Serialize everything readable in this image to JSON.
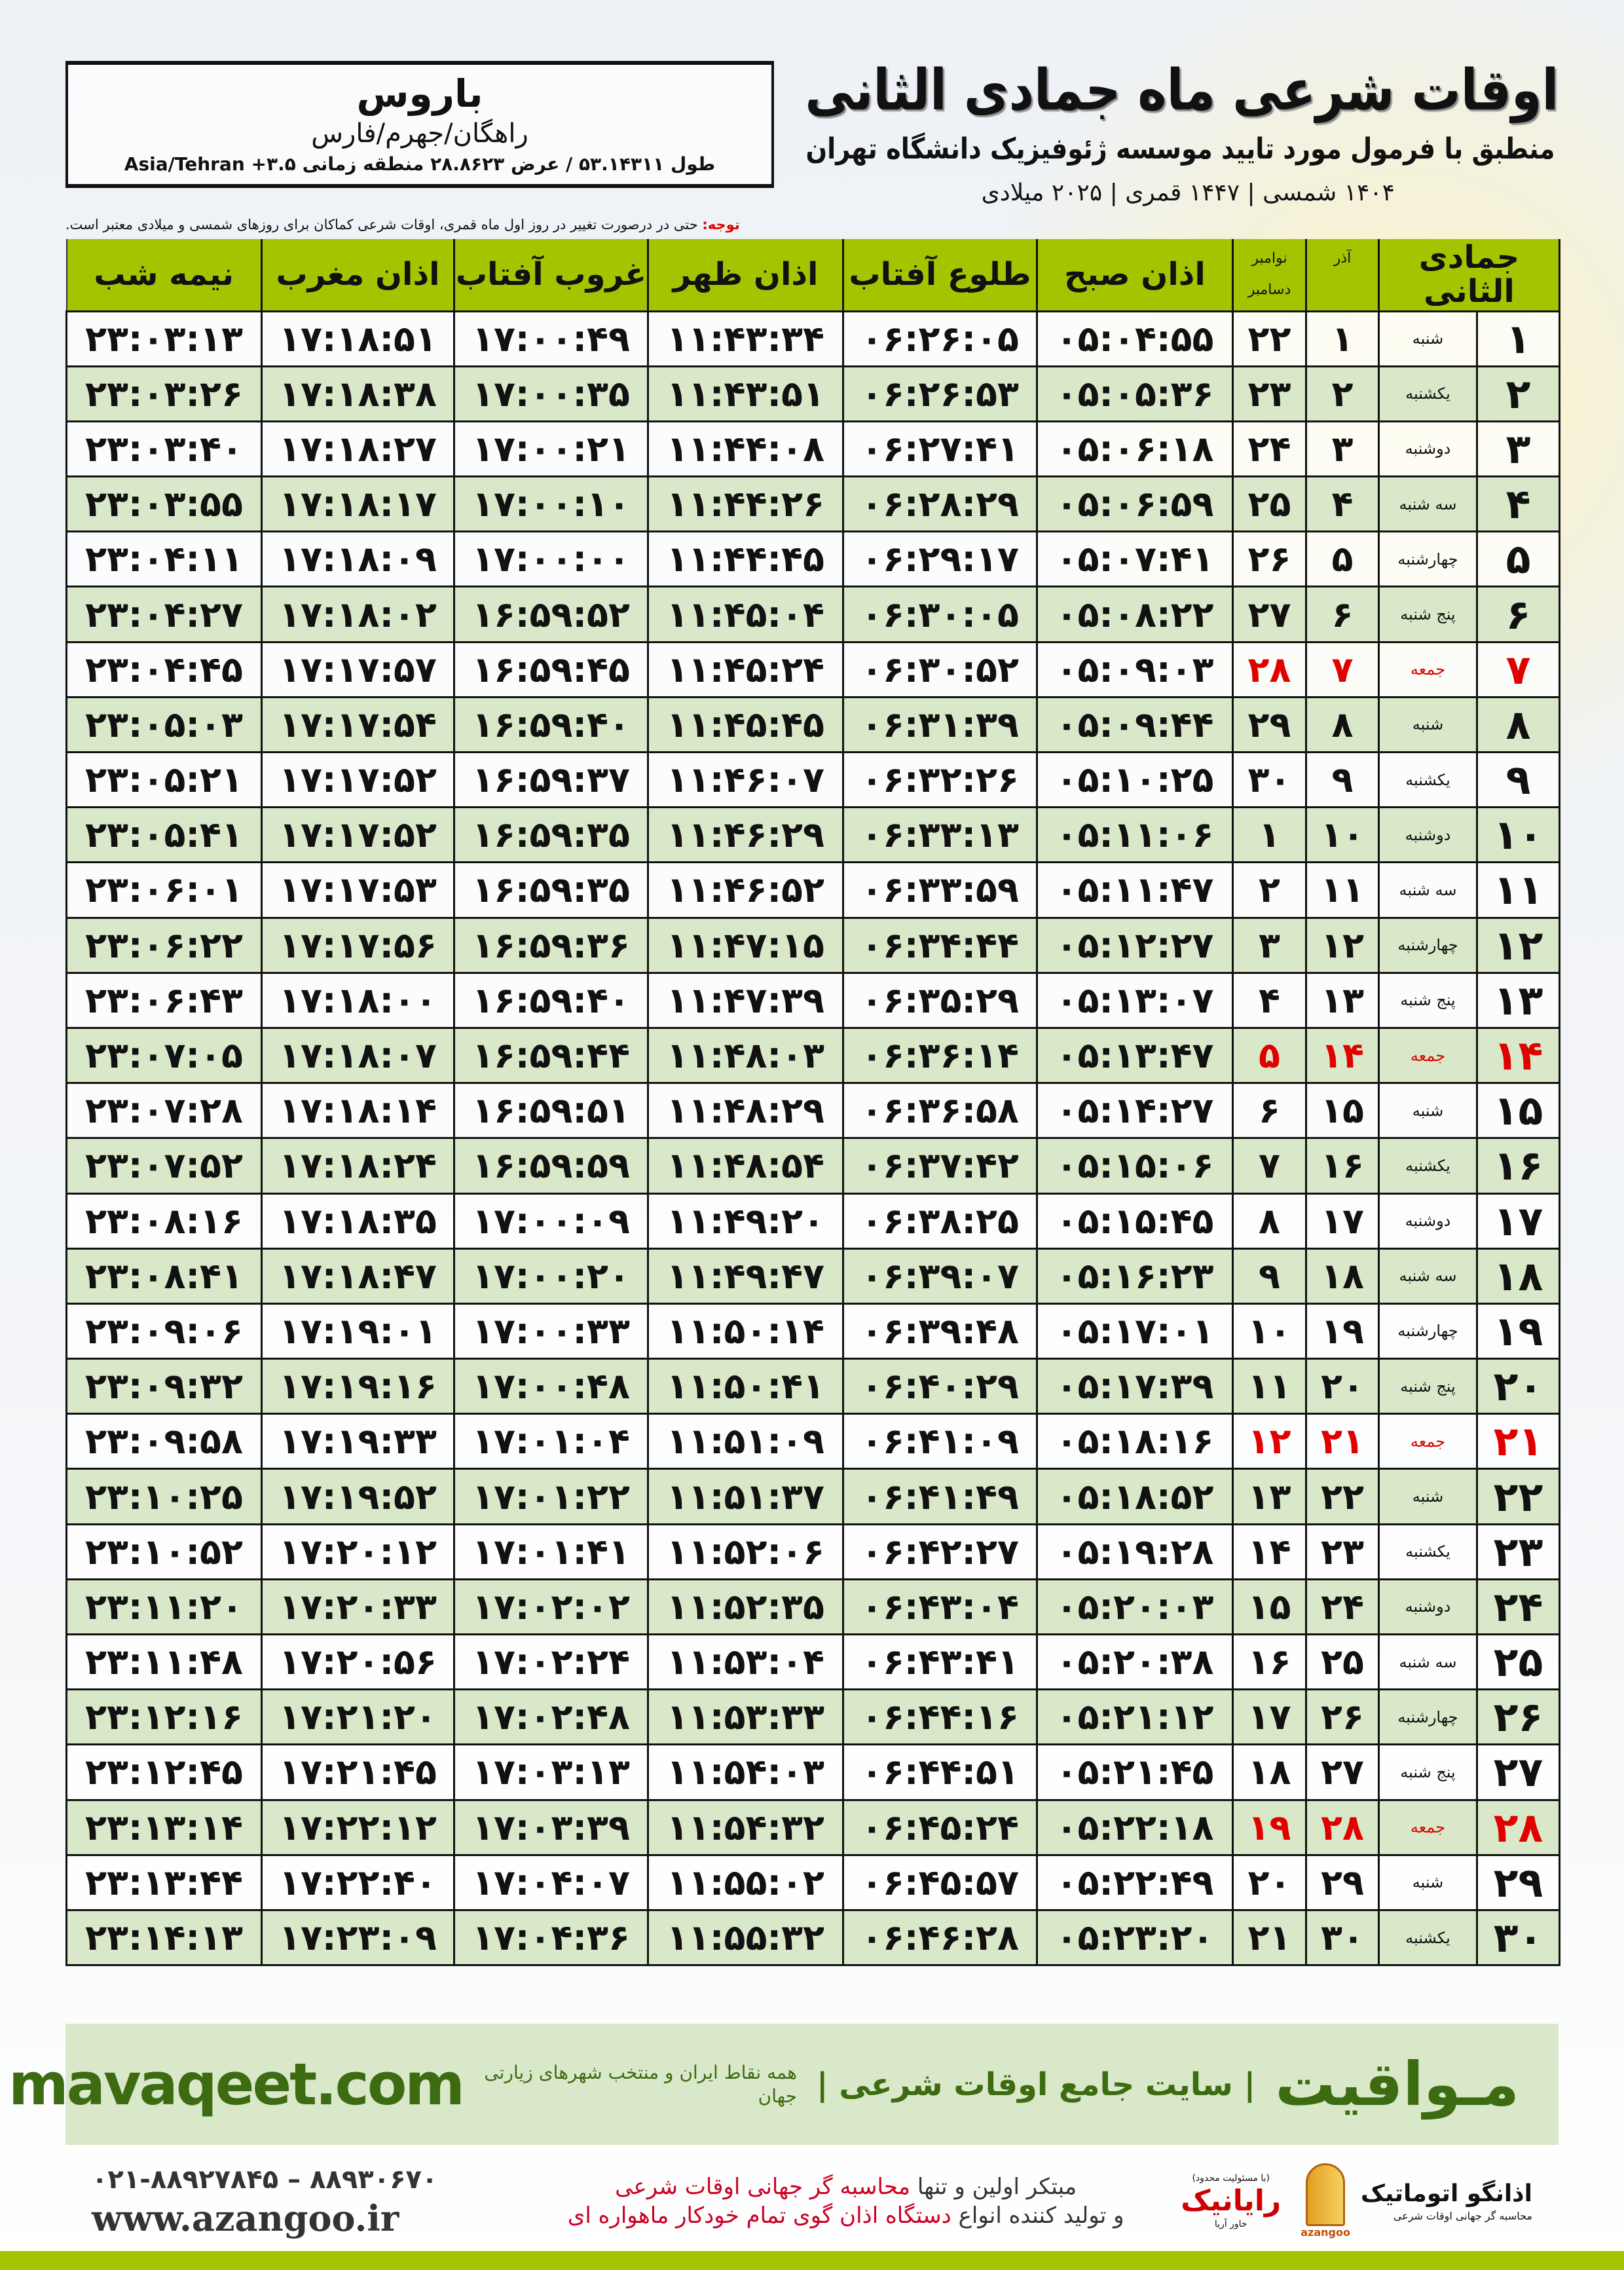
{
  "location": {
    "city": "باروس",
    "region": "راهگان/جهرم/فارس",
    "coords": "طول ۵۳.۱۴۳۱۱ / عرض ۲۸.۸۶۲۳ منطقه زمانی ۳.۵+ Asia/Tehran"
  },
  "header": {
    "title": "اوقات شرعی ماه جمادی الثانی",
    "subtitle": "منطبق با فرمول مورد تایید موسسه ژئوفیزیک دانشگاه تهران",
    "dates": "۱۴۰۴ شمسی | ۱۴۴۷ قمری | ۲۰۲۵ میلادی"
  },
  "note": {
    "label": "توجه:",
    "text": " حتی در درصورت تغییر در روز اول ماه قمری، اوقات شرعی کماکان برای روزهای شمسی و میلادی معتبر است."
  },
  "table": {
    "columns": {
      "day": "جمادی الثانی",
      "azar": "آذر",
      "nov": "نوامبر",
      "dec": "دسامبر",
      "fajr": "اذان صبح",
      "sunrise": "طلوع آفتاب",
      "dhuhr": "اذان ظهر",
      "sunset": "غروب آفتاب",
      "maghrib": "اذان مغرب",
      "midnight": "نیمه شب"
    },
    "holiday_color": "#e00000",
    "header_color": "#a5c400",
    "alt_row_color": "#d9e8c8",
    "rows": [
      [
        "۱",
        "شنبه",
        "۱",
        "۲۲",
        "۰۵:۰۴:۵۵",
        "۰۶:۲۶:۰۵",
        "۱۱:۴۳:۳۴",
        "۱۷:۰۰:۴۹",
        "۱۷:۱۸:۵۱",
        "۲۳:۰۳:۱۳"
      ],
      [
        "۲",
        "یکشنبه",
        "۲",
        "۲۳",
        "۰۵:۰۵:۳۶",
        "۰۶:۲۶:۵۳",
        "۱۱:۴۳:۵۱",
        "۱۷:۰۰:۳۵",
        "۱۷:۱۸:۳۸",
        "۲۳:۰۳:۲۶"
      ],
      [
        "۳",
        "دوشنبه",
        "۳",
        "۲۴",
        "۰۵:۰۶:۱۸",
        "۰۶:۲۷:۴۱",
        "۱۱:۴۴:۰۸",
        "۱۷:۰۰:۲۱",
        "۱۷:۱۸:۲۷",
        "۲۳:۰۳:۴۰"
      ],
      [
        "۴",
        "سه شنبه",
        "۴",
        "۲۵",
        "۰۵:۰۶:۵۹",
        "۰۶:۲۸:۲۹",
        "۱۱:۴۴:۲۶",
        "۱۷:۰۰:۱۰",
        "۱۷:۱۸:۱۷",
        "۲۳:۰۳:۵۵"
      ],
      [
        "۵",
        "چهارشنبه",
        "۵",
        "۲۶",
        "۰۵:۰۷:۴۱",
        "۰۶:۲۹:۱۷",
        "۱۱:۴۴:۴۵",
        "۱۷:۰۰:۰۰",
        "۱۷:۱۸:۰۹",
        "۲۳:۰۴:۱۱"
      ],
      [
        "۶",
        "پنج شنبه",
        "۶",
        "۲۷",
        "۰۵:۰۸:۲۲",
        "۰۶:۳۰:۰۵",
        "۱۱:۴۵:۰۴",
        "۱۶:۵۹:۵۲",
        "۱۷:۱۸:۰۲",
        "۲۳:۰۴:۲۷"
      ],
      [
        "۷",
        "جمعه",
        "۷",
        "۲۸",
        "۰۵:۰۹:۰۳",
        "۰۶:۳۰:۵۲",
        "۱۱:۴۵:۲۴",
        "۱۶:۵۹:۴۵",
        "۱۷:۱۷:۵۷",
        "۲۳:۰۴:۴۵"
      ],
      [
        "۸",
        "شنبه",
        "۸",
        "۲۹",
        "۰۵:۰۹:۴۴",
        "۰۶:۳۱:۳۹",
        "۱۱:۴۵:۴۵",
        "۱۶:۵۹:۴۰",
        "۱۷:۱۷:۵۴",
        "۲۳:۰۵:۰۳"
      ],
      [
        "۹",
        "یکشنبه",
        "۹",
        "۳۰",
        "۰۵:۱۰:۲۵",
        "۰۶:۳۲:۲۶",
        "۱۱:۴۶:۰۷",
        "۱۶:۵۹:۳۷",
        "۱۷:۱۷:۵۲",
        "۲۳:۰۵:۲۱"
      ],
      [
        "۱۰",
        "دوشنبه",
        "۱۰",
        "۱",
        "۰۵:۱۱:۰۶",
        "۰۶:۳۳:۱۳",
        "۱۱:۴۶:۲۹",
        "۱۶:۵۹:۳۵",
        "۱۷:۱۷:۵۲",
        "۲۳:۰۵:۴۱"
      ],
      [
        "۱۱",
        "سه شنبه",
        "۱۱",
        "۲",
        "۰۵:۱۱:۴۷",
        "۰۶:۳۳:۵۹",
        "۱۱:۴۶:۵۲",
        "۱۶:۵۹:۳۵",
        "۱۷:۱۷:۵۳",
        "۲۳:۰۶:۰۱"
      ],
      [
        "۱۲",
        "چهارشنبه",
        "۱۲",
        "۳",
        "۰۵:۱۲:۲۷",
        "۰۶:۳۴:۴۴",
        "۱۱:۴۷:۱۵",
        "۱۶:۵۹:۳۶",
        "۱۷:۱۷:۵۶",
        "۲۳:۰۶:۲۲"
      ],
      [
        "۱۳",
        "پنج شنبه",
        "۱۳",
        "۴",
        "۰۵:۱۳:۰۷",
        "۰۶:۳۵:۲۹",
        "۱۱:۴۷:۳۹",
        "۱۶:۵۹:۴۰",
        "۱۷:۱۸:۰۰",
        "۲۳:۰۶:۴۳"
      ],
      [
        "۱۴",
        "جمعه",
        "۱۴",
        "۵",
        "۰۵:۱۳:۴۷",
        "۰۶:۳۶:۱۴",
        "۱۱:۴۸:۰۳",
        "۱۶:۵۹:۴۴",
        "۱۷:۱۸:۰۷",
        "۲۳:۰۷:۰۵"
      ],
      [
        "۱۵",
        "شنبه",
        "۱۵",
        "۶",
        "۰۵:۱۴:۲۷",
        "۰۶:۳۶:۵۸",
        "۱۱:۴۸:۲۹",
        "۱۶:۵۹:۵۱",
        "۱۷:۱۸:۱۴",
        "۲۳:۰۷:۲۸"
      ],
      [
        "۱۶",
        "یکشنبه",
        "۱۶",
        "۷",
        "۰۵:۱۵:۰۶",
        "۰۶:۳۷:۴۲",
        "۱۱:۴۸:۵۴",
        "۱۶:۵۹:۵۹",
        "۱۷:۱۸:۲۴",
        "۲۳:۰۷:۵۲"
      ],
      [
        "۱۷",
        "دوشنبه",
        "۱۷",
        "۸",
        "۰۵:۱۵:۴۵",
        "۰۶:۳۸:۲۵",
        "۱۱:۴۹:۲۰",
        "۱۷:۰۰:۰۹",
        "۱۷:۱۸:۳۵",
        "۲۳:۰۸:۱۶"
      ],
      [
        "۱۸",
        "سه شنبه",
        "۱۸",
        "۹",
        "۰۵:۱۶:۲۳",
        "۰۶:۳۹:۰۷",
        "۱۱:۴۹:۴۷",
        "۱۷:۰۰:۲۰",
        "۱۷:۱۸:۴۷",
        "۲۳:۰۸:۴۱"
      ],
      [
        "۱۹",
        "چهارشنبه",
        "۱۹",
        "۱۰",
        "۰۵:۱۷:۰۱",
        "۰۶:۳۹:۴۸",
        "۱۱:۵۰:۱۴",
        "۱۷:۰۰:۳۳",
        "۱۷:۱۹:۰۱",
        "۲۳:۰۹:۰۶"
      ],
      [
        "۲۰",
        "پنج شنبه",
        "۲۰",
        "۱۱",
        "۰۵:۱۷:۳۹",
        "۰۶:۴۰:۲۹",
        "۱۱:۵۰:۴۱",
        "۱۷:۰۰:۴۸",
        "۱۷:۱۹:۱۶",
        "۲۳:۰۹:۳۲"
      ],
      [
        "۲۱",
        "جمعه",
        "۲۱",
        "۱۲",
        "۰۵:۱۸:۱۶",
        "۰۶:۴۱:۰۹",
        "۱۱:۵۱:۰۹",
        "۱۷:۰۱:۰۴",
        "۱۷:۱۹:۳۳",
        "۲۳:۰۹:۵۸"
      ],
      [
        "۲۲",
        "شنبه",
        "۲۲",
        "۱۳",
        "۰۵:۱۸:۵۲",
        "۰۶:۴۱:۴۹",
        "۱۱:۵۱:۳۷",
        "۱۷:۰۱:۲۲",
        "۱۷:۱۹:۵۲",
        "۲۳:۱۰:۲۵"
      ],
      [
        "۲۳",
        "یکشنبه",
        "۲۳",
        "۱۴",
        "۰۵:۱۹:۲۸",
        "۰۶:۴۲:۲۷",
        "۱۱:۵۲:۰۶",
        "۱۷:۰۱:۴۱",
        "۱۷:۲۰:۱۲",
        "۲۳:۱۰:۵۲"
      ],
      [
        "۲۴",
        "دوشنبه",
        "۲۴",
        "۱۵",
        "۰۵:۲۰:۰۳",
        "۰۶:۴۳:۰۴",
        "۱۱:۵۲:۳۵",
        "۱۷:۰۲:۰۲",
        "۱۷:۲۰:۳۳",
        "۲۳:۱۱:۲۰"
      ],
      [
        "۲۵",
        "سه شنبه",
        "۲۵",
        "۱۶",
        "۰۵:۲۰:۳۸",
        "۰۶:۴۳:۴۱",
        "۱۱:۵۳:۰۴",
        "۱۷:۰۲:۲۴",
        "۱۷:۲۰:۵۶",
        "۲۳:۱۱:۴۸"
      ],
      [
        "۲۶",
        "چهارشنبه",
        "۲۶",
        "۱۷",
        "۰۵:۲۱:۱۲",
        "۰۶:۴۴:۱۶",
        "۱۱:۵۳:۳۳",
        "۱۷:۰۲:۴۸",
        "۱۷:۲۱:۲۰",
        "۲۳:۱۲:۱۶"
      ],
      [
        "۲۷",
        "پنج شنبه",
        "۲۷",
        "۱۸",
        "۰۵:۲۱:۴۵",
        "۰۶:۴۴:۵۱",
        "۱۱:۵۴:۰۳",
        "۱۷:۰۳:۱۳",
        "۱۷:۲۱:۴۵",
        "۲۳:۱۲:۴۵"
      ],
      [
        "۲۸",
        "جمعه",
        "۲۸",
        "۱۹",
        "۰۵:۲۲:۱۸",
        "۰۶:۴۵:۲۴",
        "۱۱:۵۴:۳۲",
        "۱۷:۰۳:۳۹",
        "۱۷:۲۲:۱۲",
        "۲۳:۱۳:۱۴"
      ],
      [
        "۲۹",
        "شنبه",
        "۲۹",
        "۲۰",
        "۰۵:۲۲:۴۹",
        "۰۶:۴۵:۵۷",
        "۱۱:۵۵:۰۲",
        "۱۷:۰۴:۰۷",
        "۱۷:۲۲:۴۰",
        "۲۳:۱۳:۴۴"
      ],
      [
        "۳۰",
        "یکشنبه",
        "۳۰",
        "۲۱",
        "۰۵:۲۳:۲۰",
        "۰۶:۴۶:۲۸",
        "۱۱:۵۵:۳۲",
        "۱۷:۰۴:۳۶",
        "۱۷:۲۳:۰۹",
        "۲۳:۱۴:۱۳"
      ]
    ]
  },
  "footer": {
    "brand": "مـواقیت",
    "tagline": "| سایت جامع اوقات شرعی |",
    "tagline_sub": "همه نقاط ایران و منتخب شهرهای زیارتی جهان",
    "site": "mavaqeet.com",
    "phones": "۰۲۱-۸۸۹۲۷۸۴۵ – ۸۸۹۳۰۶۷۰",
    "web": "www.azangoo.ir",
    "promo_line1_a": "مبتکر اولین و تنها ",
    "promo_line1_b": "محاسبه گر جهانی اوقات شرعی",
    "promo_line2_a": "و تولید کننده انواع ",
    "promo_line2_b": "دستگاه اذان گوی تمام خودکار ماهواره ای",
    "rayanik_small": "(با مسئولیت محدود)",
    "rayanik": "رایانیک",
    "rayanik_sub": "خاور آریا",
    "azan_name": "اذانگو اتوماتیک",
    "azan_sub": "محاسبه گر جهانی اوقات شرعی",
    "azan_en": "azangoo"
  }
}
